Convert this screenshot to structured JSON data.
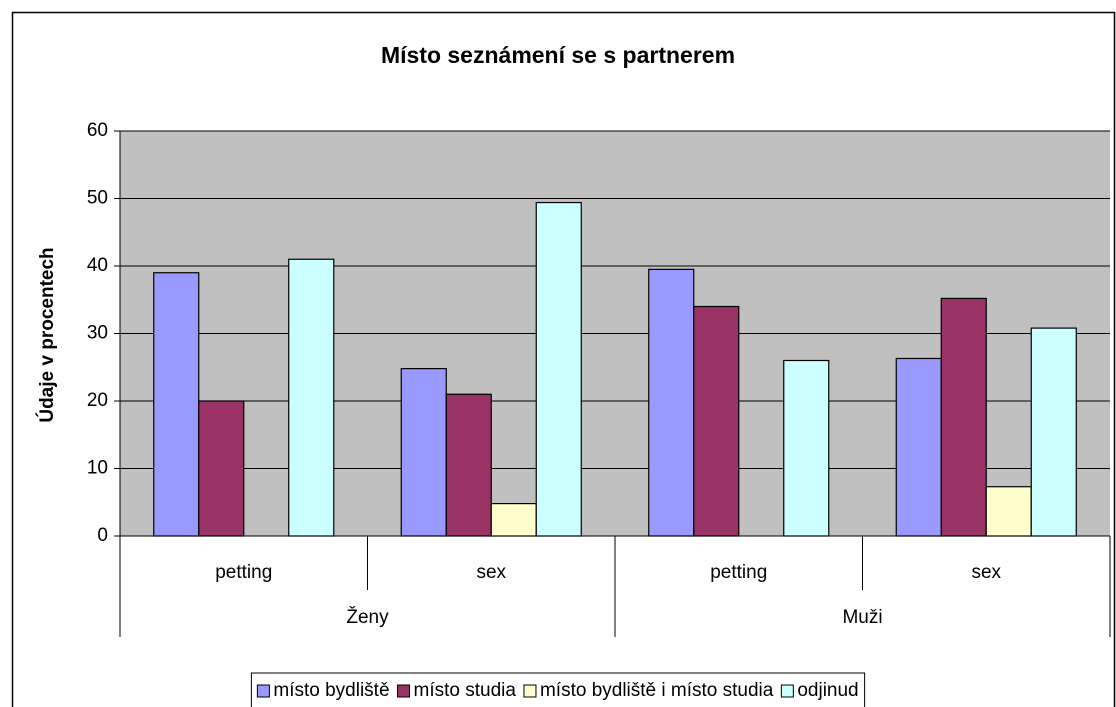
{
  "chart_data": {
    "type": "bar",
    "title": "Místo seznámení se s partnerem",
    "ylabel": "Údaje v procentech",
    "categories": [
      "petting",
      "sex",
      "petting",
      "sex"
    ],
    "groups": [
      "Ženy",
      "Muži"
    ],
    "series": [
      {
        "name": "místo bydliště",
        "color": "#9999ff",
        "values": [
          39,
          24.8,
          39.5,
          26.3
        ]
      },
      {
        "name": "místo studia",
        "color": "#993366",
        "values": [
          20,
          21,
          34,
          35.2
        ]
      },
      {
        "name": "místo bydliště i místo studia",
        "color": "#ffffcc",
        "values": [
          null,
          4.8,
          null,
          7.3
        ]
      },
      {
        "name": "odjinud",
        "color": "#ccffff",
        "values": [
          41,
          49.4,
          26,
          30.8
        ]
      }
    ],
    "ylim": [
      0,
      60
    ],
    "yticks": [
      0,
      10,
      20,
      30,
      40,
      50,
      60
    ],
    "grid": true,
    "legend": "bottom"
  }
}
